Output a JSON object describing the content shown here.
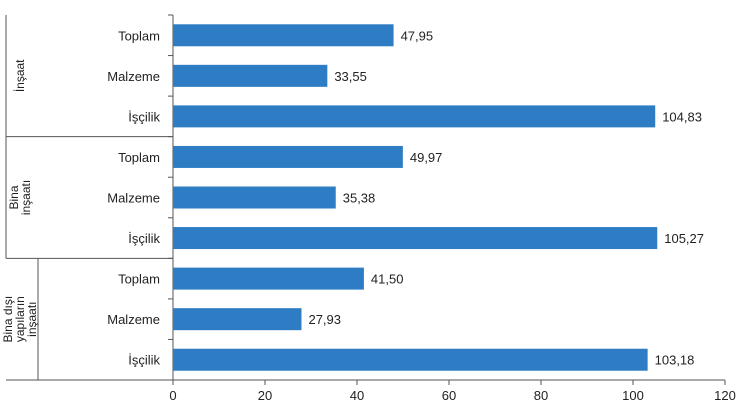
{
  "chart_data": {
    "type": "bar",
    "orientation": "horizontal",
    "groups": [
      {
        "label_lines": [
          "İnşaat"
        ],
        "categories": [
          "Toplam",
          "Malzeme",
          "İşçilik"
        ],
        "values": [
          47.95,
          33.55,
          104.83
        ],
        "value_labels": [
          "47,95",
          "33,55",
          "104,83"
        ]
      },
      {
        "label_lines": [
          "Bina",
          "inşaatı"
        ],
        "categories": [
          "Toplam",
          "Malzeme",
          "İşçilik"
        ],
        "values": [
          49.97,
          35.38,
          105.27
        ],
        "value_labels": [
          "49,97",
          "35,38",
          "105,27"
        ]
      },
      {
        "label_lines": [
          "Bina dışı",
          "yapıların",
          "inşaatı"
        ],
        "categories": [
          "Toplam",
          "Malzeme",
          "İşçilik"
        ],
        "values": [
          41.5,
          27.93,
          103.18
        ],
        "value_labels": [
          "41,50",
          "27,93",
          "103,18"
        ]
      }
    ],
    "xlim": [
      0,
      120
    ],
    "xticks": [
      0,
      20,
      40,
      60,
      80,
      100,
      120
    ],
    "grid": false,
    "bar_color": "#2e7dc4"
  }
}
